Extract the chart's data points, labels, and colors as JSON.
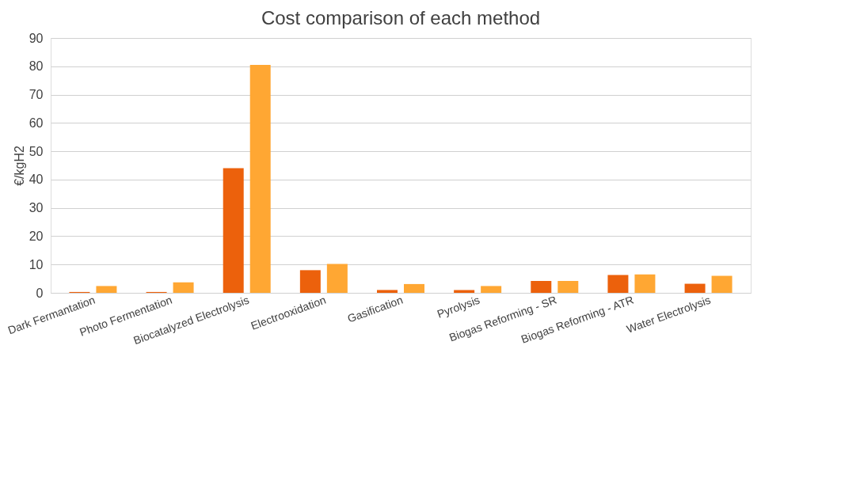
{
  "chart_data": {
    "type": "bar",
    "title": "Cost comparison of each method",
    "ylabel": "€/kgH2",
    "categories": [
      "Dark Fermantation",
      "Photo Fermentation",
      "Biocatalyzed Electrolysis",
      "Electrooxidation",
      "Gasification",
      "Pyrolysis",
      "Biogas Reforming - SR",
      "Biogas Reforming - ATR",
      "Water Electrolysis"
    ],
    "series": [
      {
        "color": "#ec610c",
        "values": [
          0.3,
          0.3,
          44,
          8,
          1,
          1,
          4.2,
          6.3,
          3.2
        ]
      },
      {
        "color": "#ffa733",
        "values": [
          2.4,
          3.7,
          80.5,
          10.2,
          3.1,
          2.4,
          4.2,
          6.5,
          6
        ]
      }
    ],
    "ylim": [
      0,
      90
    ],
    "yticks": [
      0,
      10,
      20,
      30,
      40,
      50,
      60,
      70,
      80,
      90
    ],
    "grid": "y",
    "legend": false
  }
}
